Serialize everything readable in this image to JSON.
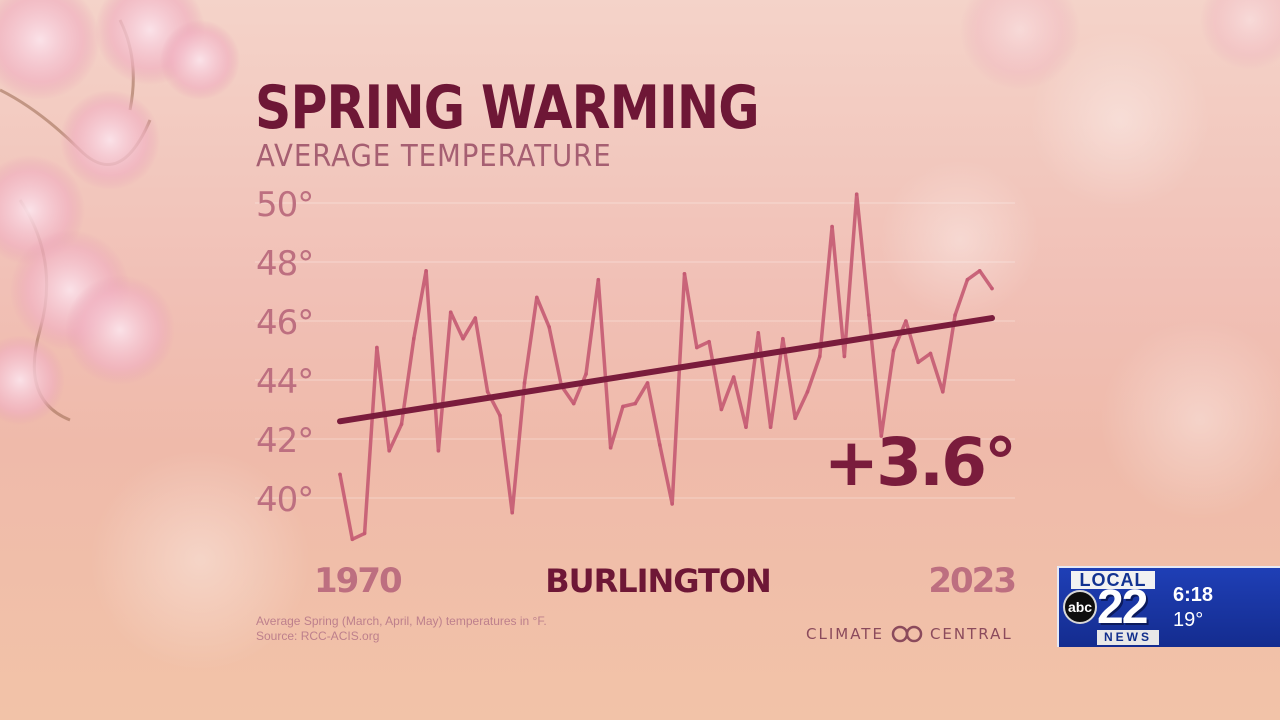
{
  "heading": {
    "title": "SPRING WARMING",
    "subtitle": "AVERAGE TEMPERATURE"
  },
  "chart_data": {
    "type": "line",
    "title": "SPRING WARMING",
    "subtitle": "AVERAGE TEMPERATURE",
    "location": "BURLINGTON",
    "x_start_label": "1970",
    "x_end_label": "2023",
    "ylim": [
      39,
      51
    ],
    "y_ticks": [
      40,
      42,
      44,
      46,
      48,
      50
    ],
    "y_tick_labels": [
      "40°",
      "42°",
      "44°",
      "46°",
      "48°",
      "50°"
    ],
    "grid": true,
    "x": [
      1970,
      1971,
      1972,
      1973,
      1974,
      1975,
      1976,
      1977,
      1978,
      1979,
      1980,
      1981,
      1982,
      1983,
      1984,
      1985,
      1986,
      1987,
      1988,
      1989,
      1990,
      1991,
      1992,
      1993,
      1994,
      1995,
      1996,
      1997,
      1998,
      1999,
      2000,
      2001,
      2002,
      2003,
      2004,
      2005,
      2006,
      2007,
      2008,
      2009,
      2010,
      2011,
      2012,
      2013,
      2014,
      2015,
      2016,
      2017,
      2018,
      2019,
      2020,
      2021,
      2022,
      2023
    ],
    "values": [
      40.8,
      38.6,
      38.8,
      45.1,
      41.6,
      42.5,
      45.4,
      47.7,
      41.6,
      46.3,
      45.4,
      46.1,
      43.6,
      42.8,
      39.5,
      43.9,
      46.8,
      45.8,
      43.8,
      43.2,
      44.2,
      47.4,
      41.7,
      43.1,
      43.2,
      43.9,
      41.8,
      39.8,
      47.6,
      45.1,
      45.3,
      43.0,
      44.1,
      42.4,
      45.6,
      42.4,
      45.4,
      42.7,
      43.6,
      44.8,
      49.2,
      44.8,
      50.3,
      46.2,
      42.1,
      45.0,
      46.0,
      44.6,
      44.9,
      43.6,
      46.2,
      47.4,
      47.7,
      47.1
    ],
    "trend": {
      "start": 42.6,
      "end": 46.1,
      "change_label": "+3.6°"
    },
    "footnote": "Average Spring (March, April, May) temperatures in °F.",
    "source": "Source: RCC-ACIS.org"
  },
  "brand": {
    "left_text": "CLIMATE",
    "right_text": "CENTRAL",
    "mark_icon": "climate-central-logo-icon"
  },
  "station_bug": {
    "local": "LOCAL",
    "network": "abc",
    "channel": "22",
    "news": "NEWS",
    "time": "6:18",
    "temperature": "19°",
    "colors": {
      "background": "#1f3fb6",
      "text": "#ffffff"
    }
  },
  "colors": {
    "title": "#6e1736",
    "subtitle": "#a65f72",
    "data_line": "#c45a72",
    "trend_line": "#7a1c3c",
    "axis_labels": "#bd6f80"
  }
}
